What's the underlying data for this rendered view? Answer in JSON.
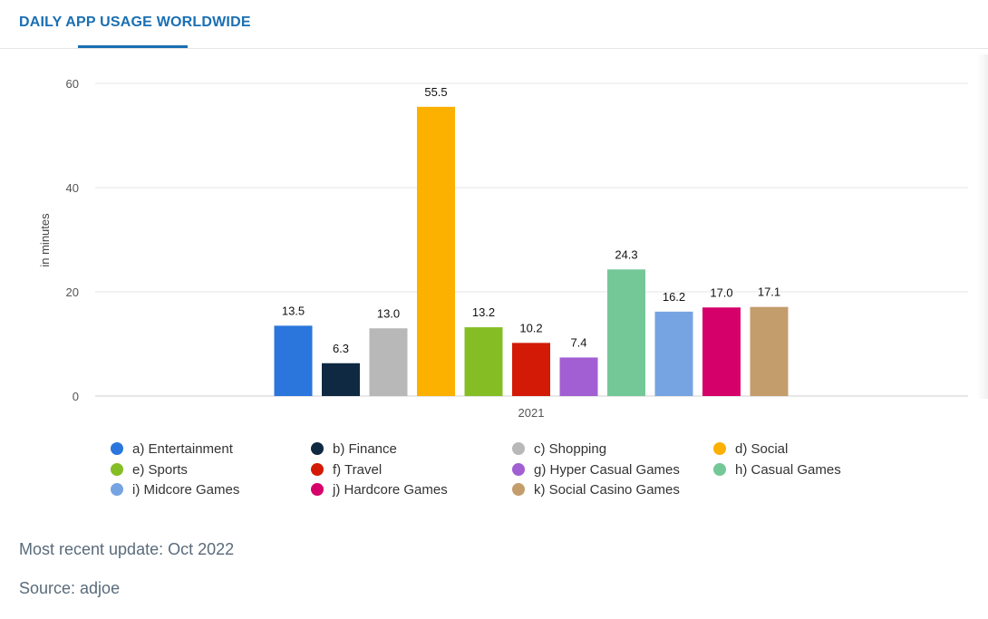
{
  "header": {
    "tab_title": "DAILY APP USAGE WORLDWIDE"
  },
  "chart_data": {
    "type": "bar",
    "title": "",
    "xlabel": "",
    "ylabel": "in minutes",
    "categories": [
      "2021"
    ],
    "ylim": [
      0,
      60
    ],
    "yticks": [
      0,
      20,
      40,
      60
    ],
    "grid": true,
    "legend_position": "bottom",
    "series": [
      {
        "name": "a) Entertainment",
        "values": [
          13.5
        ],
        "label": "13.5",
        "color": "#2a76dd"
      },
      {
        "name": "b) Finance",
        "values": [
          6.3
        ],
        "label": "6.3",
        "color": "#0f2942"
      },
      {
        "name": "c) Shopping",
        "values": [
          13.0
        ],
        "label": "13.0",
        "color": "#b8b8b8"
      },
      {
        "name": "d) Social",
        "values": [
          55.5
        ],
        "label": "55.5",
        "color": "#fcb000"
      },
      {
        "name": "e) Sports",
        "values": [
          13.2
        ],
        "label": "13.2",
        "color": "#85bd25"
      },
      {
        "name": "f) Travel",
        "values": [
          10.2
        ],
        "label": "10.2",
        "color": "#d31a06"
      },
      {
        "name": "g) Hyper Casual Games",
        "values": [
          7.4
        ],
        "label": "7.4",
        "color": "#a15fd3"
      },
      {
        "name": "h) Casual Games",
        "values": [
          24.3
        ],
        "label": "24.3",
        "color": "#74c898"
      },
      {
        "name": "i) Midcore Games",
        "values": [
          16.2
        ],
        "label": "16.2",
        "color": "#76a4e3"
      },
      {
        "name": "j) Hardcore Games",
        "values": [
          17.0
        ],
        "label": "17.0",
        "color": "#d6006a"
      },
      {
        "name": "k) Social Casino Games",
        "values": [
          17.1
        ],
        "label": "17.1",
        "color": "#c49d6d"
      }
    ]
  },
  "footer": {
    "update": "Most recent update: Oct 2022",
    "source": "Source: adjoe"
  }
}
